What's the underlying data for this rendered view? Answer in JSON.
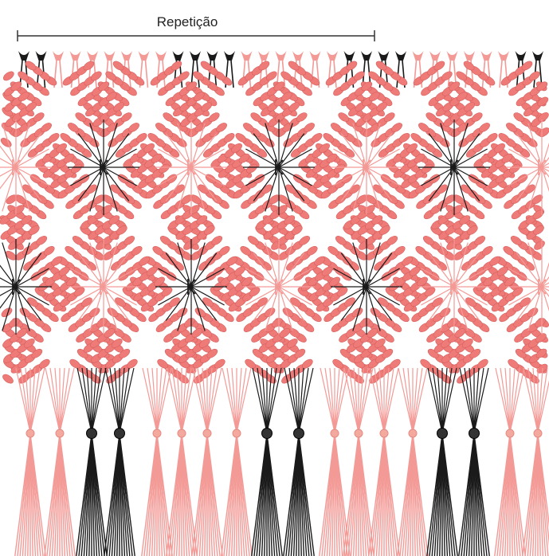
{
  "header": {
    "label": "Repetição"
  }
}
